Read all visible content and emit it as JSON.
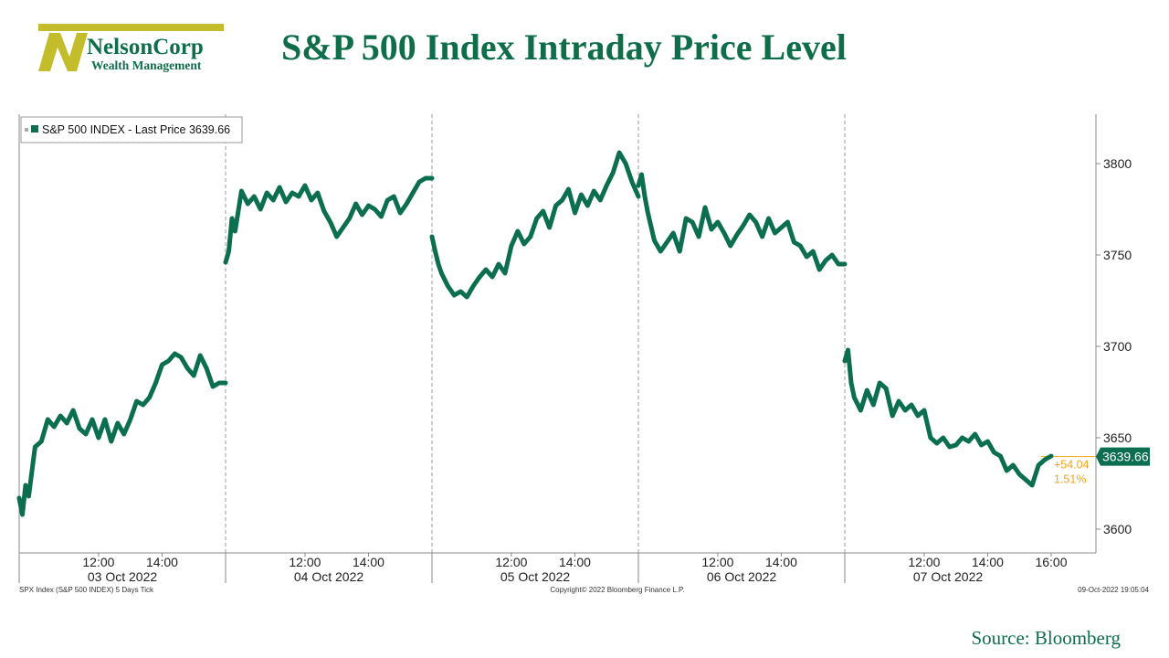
{
  "logo": {
    "company": "NelsonCorp",
    "tagline": "Wealth Management"
  },
  "title": "S&P 500 Index Intraday Price Level",
  "source": "Source: Bloomberg",
  "legend": {
    "label": "S&P 500 INDEX - Last Price 3639.66"
  },
  "last_price_badge": "3639.66",
  "change_abs": "+54.04",
  "change_pct": "1.51%",
  "footer": {
    "left": "SPX Index (S&P 500 INDEX) 5 Days  Tick",
    "center": "Copyright© 2022 Bloomberg Finance L.P.",
    "right": "09-Oct-2022 19:05:04"
  },
  "colors": {
    "line": "#0b6e4f",
    "accent": "#f2a51a",
    "title": "#0f6e4a",
    "logo_gold": "#c3bd2c"
  },
  "chart_data": {
    "type": "line",
    "ylim": [
      3580,
      3825
    ],
    "yticks": [
      3600,
      3650,
      3700,
      3750,
      3800
    ],
    "xlim": [
      9.5,
      16
    ],
    "last_value": 3639.66,
    "grid": false,
    "legend_position": "top-left",
    "days": [
      {
        "label": "03 Oct 2022",
        "times": [
          "12:00",
          "14:00"
        ],
        "x": [
          9.5,
          9.6,
          9.7,
          9.8,
          10.0,
          10.2,
          10.4,
          10.6,
          10.8,
          11.0,
          11.2,
          11.4,
          11.6,
          11.8,
          12.0,
          12.2,
          12.4,
          12.6,
          12.8,
          13.0,
          13.2,
          13.4,
          13.6,
          13.8,
          14.0,
          14.2,
          14.4,
          14.6,
          14.8,
          15.0,
          15.2,
          15.4,
          15.6,
          15.8,
          16.0
        ],
        "values": [
          3617,
          3608,
          3624,
          3618,
          3645,
          3648,
          3660,
          3656,
          3662,
          3658,
          3665,
          3655,
          3652,
          3660,
          3650,
          3660,
          3648,
          3658,
          3652,
          3660,
          3670,
          3668,
          3672,
          3680,
          3690,
          3692,
          3696,
          3694,
          3688,
          3684,
          3695,
          3688,
          3678,
          3680,
          3680
        ]
      },
      {
        "label": "04 Oct 2022",
        "times": [
          "12:00",
          "14:00"
        ],
        "x": [
          9.5,
          9.6,
          9.7,
          9.8,
          10.0,
          10.2,
          10.4,
          10.6,
          10.8,
          11.0,
          11.2,
          11.4,
          11.6,
          11.8,
          12.0,
          12.2,
          12.4,
          12.6,
          12.8,
          13.0,
          13.2,
          13.4,
          13.6,
          13.8,
          14.0,
          14.2,
          14.4,
          14.6,
          14.8,
          15.0,
          15.2,
          15.4,
          15.6,
          15.8,
          16.0
        ],
        "values": [
          3746,
          3752,
          3770,
          3763,
          3785,
          3778,
          3782,
          3775,
          3784,
          3780,
          3787,
          3779,
          3784,
          3782,
          3788,
          3780,
          3784,
          3774,
          3768,
          3760,
          3765,
          3770,
          3778,
          3772,
          3777,
          3775,
          3771,
          3780,
          3782,
          3773,
          3778,
          3784,
          3790,
          3792,
          3792
        ]
      },
      {
        "label": "05 Oct 2022",
        "times": [
          "12:00",
          "14:00"
        ],
        "x": [
          9.5,
          9.6,
          9.7,
          9.8,
          10.0,
          10.2,
          10.4,
          10.6,
          10.8,
          11.0,
          11.2,
          11.4,
          11.6,
          11.8,
          12.0,
          12.2,
          12.4,
          12.6,
          12.8,
          13.0,
          13.2,
          13.4,
          13.6,
          13.8,
          14.0,
          14.2,
          14.4,
          14.6,
          14.8,
          15.0,
          15.2,
          15.4,
          15.6,
          15.8,
          16.0
        ],
        "values": [
          3760,
          3752,
          3745,
          3740,
          3733,
          3728,
          3730,
          3727,
          3733,
          3738,
          3742,
          3738,
          3745,
          3740,
          3755,
          3763,
          3756,
          3760,
          3770,
          3774,
          3765,
          3777,
          3780,
          3786,
          3773,
          3783,
          3777,
          3785,
          3780,
          3788,
          3795,
          3806,
          3800,
          3790,
          3782
        ]
      },
      {
        "label": "06 Oct 2022",
        "times": [
          "12:00",
          "14:00"
        ],
        "x": [
          9.5,
          9.6,
          9.7,
          9.8,
          10.0,
          10.2,
          10.4,
          10.6,
          10.8,
          11.0,
          11.2,
          11.4,
          11.6,
          11.8,
          12.0,
          12.2,
          12.4,
          12.6,
          12.8,
          13.0,
          13.2,
          13.4,
          13.6,
          13.8,
          14.0,
          14.2,
          14.4,
          14.6,
          14.8,
          15.0,
          15.2,
          15.4,
          15.6,
          15.8,
          16.0
        ],
        "values": [
          3788,
          3794,
          3782,
          3773,
          3758,
          3752,
          3757,
          3762,
          3752,
          3770,
          3768,
          3760,
          3776,
          3764,
          3768,
          3762,
          3755,
          3761,
          3766,
          3772,
          3768,
          3760,
          3770,
          3762,
          3765,
          3768,
          3757,
          3755,
          3749,
          3752,
          3742,
          3747,
          3750,
          3745,
          3745
        ]
      },
      {
        "label": "07 Oct 2022",
        "times": [
          "12:00",
          "14:00",
          "16:00"
        ],
        "x": [
          9.5,
          9.6,
          9.7,
          9.8,
          10.0,
          10.2,
          10.4,
          10.6,
          10.8,
          11.0,
          11.2,
          11.4,
          11.6,
          11.8,
          12.0,
          12.2,
          12.4,
          12.6,
          12.8,
          13.0,
          13.2,
          13.4,
          13.6,
          13.8,
          14.0,
          14.2,
          14.4,
          14.6,
          14.8,
          15.0,
          15.2,
          15.4,
          15.6,
          15.8,
          16.0
        ],
        "values": [
          3692,
          3698,
          3680,
          3672,
          3665,
          3676,
          3668,
          3680,
          3677,
          3662,
          3670,
          3665,
          3668,
          3662,
          3665,
          3650,
          3647,
          3650,
          3645,
          3646,
          3650,
          3648,
          3652,
          3646,
          3648,
          3642,
          3640,
          3632,
          3635,
          3630,
          3627,
          3624,
          3635,
          3638,
          3640
        ]
      }
    ]
  }
}
